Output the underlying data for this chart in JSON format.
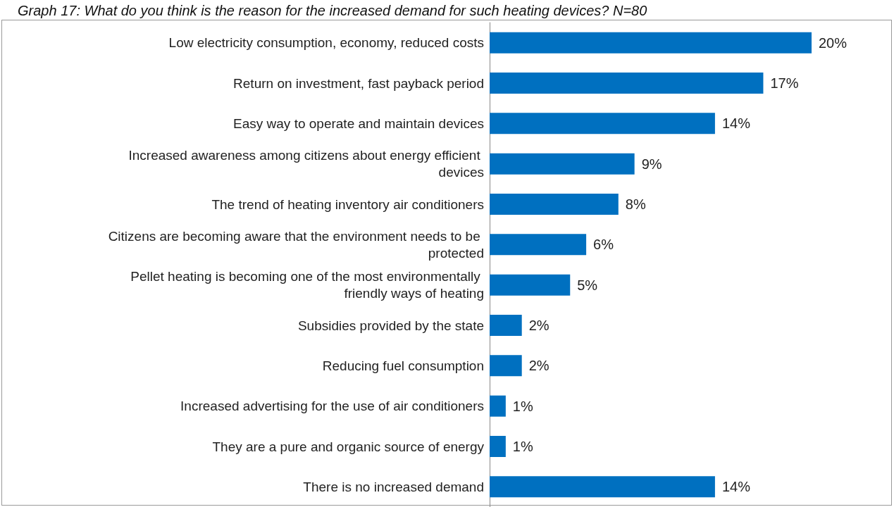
{
  "chart_data": {
    "type": "bar",
    "orientation": "horizontal",
    "title": "Graph 17: What do you think is the reason for the increased demand for such heating devices? N=80",
    "categories": [
      "Low electricity consumption, economy, reduced costs",
      "Return on investment, fast payback period",
      "Easy way to operate and maintain devices",
      "Increased awareness among citizens about energy efficient devices",
      "The trend of heating inventory air conditioners",
      "Citizens are becoming aware that the environment needs to be protected",
      "Pellet heating is becoming one of the most environmentally friendly ways of heating",
      "Subsidies provided by the state",
      "Reducing fuel consumption",
      "Increased advertising for the use of air conditioners",
      "They are a pure and organic source of energy",
      "There is no increased demand"
    ],
    "values": [
      20,
      17,
      14,
      9,
      8,
      6,
      5,
      2,
      2,
      1,
      1,
      14
    ],
    "value_labels": [
      "20%",
      "17%",
      "14%",
      "9%",
      "8%",
      "6%",
      "5%",
      "2%",
      "2%",
      "1%",
      "1%",
      "14%"
    ],
    "color": "#0070c0",
    "grid": false
  }
}
